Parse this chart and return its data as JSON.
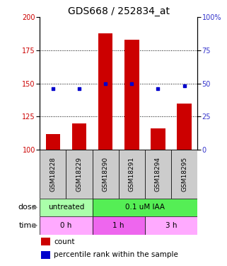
{
  "title": "GDS668 / 252834_at",
  "samples": [
    "GSM18228",
    "GSM18229",
    "GSM18290",
    "GSM18291",
    "GSM18294",
    "GSM18295"
  ],
  "bar_values": [
    112,
    120,
    188,
    183,
    116,
    135
  ],
  "bar_bottom": 100,
  "blue_values": [
    46,
    46,
    50,
    50,
    46,
    48
  ],
  "left_ylim": [
    100,
    200
  ],
  "left_yticks": [
    100,
    125,
    150,
    175,
    200
  ],
  "right_ylim": [
    0,
    100
  ],
  "right_yticks": [
    0,
    25,
    50,
    75,
    100
  ],
  "bar_color": "#cc0000",
  "blue_color": "#0000cc",
  "dose_labels": [
    {
      "text": "untreated",
      "start": 0,
      "end": 2,
      "color": "#aaffaa"
    },
    {
      "text": "0.1 uM IAA",
      "start": 2,
      "end": 6,
      "color": "#55ee55"
    }
  ],
  "time_labels": [
    {
      "text": "0 h",
      "start": 0,
      "end": 2,
      "color": "#ffaaff"
    },
    {
      "text": "1 h",
      "start": 2,
      "end": 4,
      "color": "#ee66ee"
    },
    {
      "text": "3 h",
      "start": 4,
      "end": 6,
      "color": "#ffaaff"
    }
  ],
  "legend_count_label": "count",
  "legend_pct_label": "percentile rank within the sample",
  "title_fontsize": 10,
  "axis_label_color_left": "#cc0000",
  "axis_label_color_right": "#3333cc",
  "tick_label_fontsize": 7,
  "sample_label_fontsize": 6.5,
  "background_color": "#ffffff",
  "sample_box_color": "#cccccc"
}
